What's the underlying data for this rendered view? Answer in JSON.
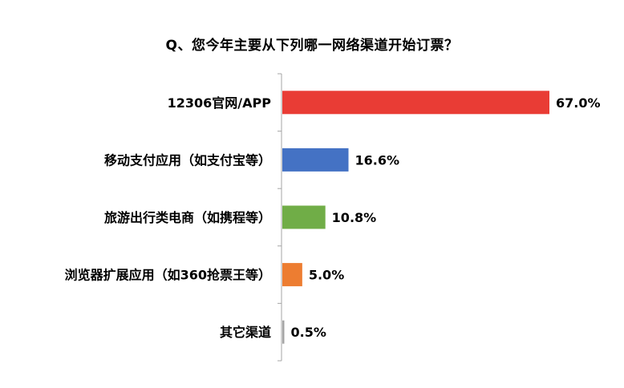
{
  "chart_data": {
    "type": "bar",
    "orientation": "horizontal",
    "title": "Q、您今年主要从下列哪一网络渠道开始订票？",
    "categories": [
      "12306官网/APP",
      "移动支付应用（如支付宝等）",
      "旅游出行类电商（如携程等）",
      "浏览器扩展应用（如360抢票王等）",
      "其它渠道"
    ],
    "values": [
      67.0,
      16.6,
      10.8,
      5.0,
      0.5
    ],
    "value_labels": [
      "67.0%",
      "16.6%",
      "10.8%",
      "5.0%",
      "0.5%"
    ],
    "colors": [
      "#e93c35",
      "#4472c4",
      "#70ad47",
      "#ed7d31",
      "#a5a5a5"
    ],
    "xlabel": "",
    "ylabel": "",
    "xlim": [
      0,
      100
    ],
    "grid": false,
    "legend": "none"
  }
}
